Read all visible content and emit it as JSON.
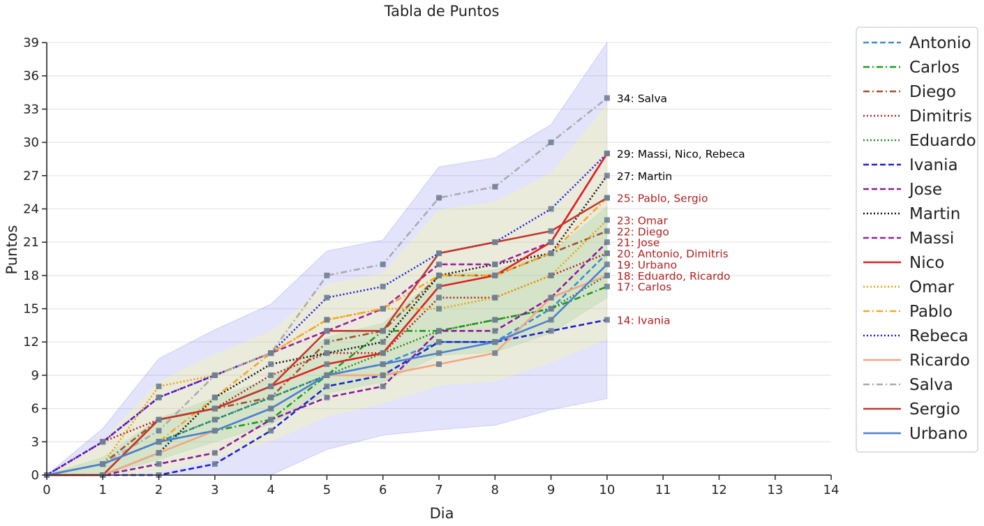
{
  "chart_data": {
    "type": "line",
    "title": "Tabla de Puntos",
    "xlabel": "Dia",
    "ylabel": "Puntos",
    "xlim": [
      0,
      14
    ],
    "ylim": [
      0,
      39
    ],
    "xticks": [
      "0",
      "1",
      "2",
      "3",
      "4",
      "5",
      "6",
      "7",
      "8",
      "9",
      "10",
      "11",
      "12",
      "13",
      "14"
    ],
    "yticks": [
      "0",
      "3",
      "6",
      "9",
      "12",
      "15",
      "18",
      "21",
      "24",
      "27",
      "30",
      "33",
      "36",
      "39"
    ],
    "grid": "horizontal",
    "legend_position": "outside-right",
    "x": [
      0,
      1,
      2,
      3,
      4,
      5,
      6,
      7,
      8,
      9,
      10
    ],
    "series": [
      {
        "name": "Antonio",
        "color": "#3b8ed0",
        "dash": "dashed",
        "values": [
          0,
          1,
          3,
          5,
          7,
          9,
          10,
          12,
          12,
          15,
          20
        ]
      },
      {
        "name": "Carlos",
        "color": "#1f9a1f",
        "dash": "dashdot",
        "values": [
          0,
          1,
          3,
          4,
          5,
          9,
          13,
          13,
          14,
          15,
          17
        ]
      },
      {
        "name": "Diego",
        "color": "#a0522d",
        "dash": "dashdot",
        "values": [
          0,
          1,
          5,
          6,
          7,
          12,
          13,
          18,
          18,
          20,
          22
        ]
      },
      {
        "name": "Dimitris",
        "color": "#b22222",
        "dash": "dotted",
        "values": [
          0,
          3,
          5,
          6,
          9,
          11,
          11,
          16,
          16,
          18,
          20
        ]
      },
      {
        "name": "Eduardo",
        "color": "#228b22",
        "dash": "dotted",
        "values": [
          0,
          1,
          3,
          5,
          7,
          9,
          11,
          13,
          14,
          15,
          18
        ]
      },
      {
        "name": "Ivania",
        "color": "#1f1fd0",
        "dash": "dashed",
        "values": [
          0,
          0,
          0,
          1,
          4,
          8,
          9,
          12,
          12,
          13,
          14
        ]
      },
      {
        "name": "Jose",
        "color": "#8b1a9a",
        "dash": "dashed",
        "values": [
          0,
          0,
          1,
          2,
          5,
          7,
          8,
          13,
          13,
          16,
          21
        ]
      },
      {
        "name": "Martin",
        "color": "#111111",
        "dash": "dotted",
        "values": [
          0,
          0,
          2,
          7,
          10,
          11,
          12,
          18,
          19,
          20,
          27
        ]
      },
      {
        "name": "Massi",
        "color": "#9a1fa0",
        "dash": "dashed",
        "values": [
          0,
          3,
          7,
          9,
          11,
          13,
          15,
          19,
          19,
          21,
          29
        ]
      },
      {
        "name": "Nico",
        "color": "#e02020",
        "dash": "solid",
        "values": [
          0,
          0,
          5,
          6,
          8,
          10,
          11,
          17,
          18,
          21,
          29
        ]
      },
      {
        "name": "Omar",
        "color": "#f0a000",
        "dash": "dotted",
        "values": [
          0,
          1,
          8,
          9,
          11,
          14,
          15,
          15,
          16,
          18,
          23
        ]
      },
      {
        "name": "Pablo",
        "color": "#f5a623",
        "dash": "dashdot",
        "values": [
          0,
          1,
          3,
          7,
          11,
          14,
          15,
          18,
          18,
          20,
          25
        ]
      },
      {
        "name": "Rebeca",
        "color": "#1a1ae0",
        "dash": "dotted",
        "values": [
          0,
          3,
          7,
          9,
          11,
          16,
          17,
          20,
          21,
          24,
          29
        ]
      },
      {
        "name": "Ricardo",
        "color": "#f4a582",
        "dash": "solid",
        "values": [
          0,
          0,
          2,
          4,
          6,
          9,
          9,
          10,
          11,
          16,
          18
        ]
      },
      {
        "name": "Salva",
        "color": "#aaaaaa",
        "dash": "dashdot",
        "values": [
          0,
          1,
          4,
          9,
          11,
          18,
          19,
          25,
          26,
          30,
          34
        ]
      },
      {
        "name": "Sergio",
        "color": "#c0392b",
        "dash": "solid",
        "values": [
          0,
          0,
          5,
          6,
          8,
          13,
          13,
          20,
          21,
          22,
          25
        ]
      },
      {
        "name": "Urbano",
        "color": "#4a7fd6",
        "dash": "solid",
        "values": [
          0,
          1,
          3,
          4,
          6,
          9,
          10,
          11,
          12,
          14,
          19
        ]
      }
    ],
    "bands": [
      {
        "color": "#6666ee",
        "opacity": 0.18,
        "lower": [
          0,
          0,
          0,
          0,
          0,
          2.3,
          3.6,
          4.1,
          4.5,
          5.9,
          6.9
        ],
        "upper": [
          0,
          4.2,
          10.5,
          13.1,
          15.4,
          20.2,
          21.2,
          27.8,
          28.6,
          31.6,
          39
        ]
      },
      {
        "color": "#ffff88",
        "opacity": 0.28,
        "lower": [
          0,
          0,
          0.3,
          1.6,
          3.1,
          5.3,
          6.5,
          8.1,
          8.5,
          10.2,
          12.3
        ],
        "upper": [
          0,
          3.1,
          8.4,
          10.9,
          12.9,
          17.2,
          18.2,
          23.9,
          24.6,
          27.2,
          33.4
        ]
      },
      {
        "color": "#88cc88",
        "opacity": 0.22,
        "lower": [
          0,
          0,
          1.4,
          3.0,
          4.6,
          7.4,
          8.4,
          10.8,
          11.1,
          12.8,
          16.0
        ],
        "upper": [
          0,
          1.6,
          5.1,
          7.0,
          8.7,
          12.4,
          13.7,
          18.0,
          18.5,
          20.0,
          24.2
        ]
      }
    ],
    "end_labels": [
      {
        "y": 34,
        "text": "34: Salva",
        "color": "#000000"
      },
      {
        "y": 29,
        "text": "29: Massi, Nico, Rebeca",
        "color": "#000000"
      },
      {
        "y": 27,
        "text": "27: Martin",
        "color": "#000000"
      },
      {
        "y": 25,
        "text": "25: Pablo, Sergio",
        "color": "#b22222"
      },
      {
        "y": 23,
        "text": "23: Omar",
        "color": "#b22222"
      },
      {
        "y": 22,
        "text": "22: Diego",
        "color": "#b22222"
      },
      {
        "y": 21,
        "text": "21: Jose",
        "color": "#b22222"
      },
      {
        "y": 20,
        "text": "20: Antonio, Dimitris",
        "color": "#b22222"
      },
      {
        "y": 19,
        "text": "19: Urbano",
        "color": "#b22222"
      },
      {
        "y": 18,
        "text": "18: Eduardo, Ricardo",
        "color": "#b22222"
      },
      {
        "y": 17,
        "text": "17: Carlos",
        "color": "#b22222"
      },
      {
        "y": 14,
        "text": "14: Ivania",
        "color": "#b22222"
      }
    ]
  }
}
